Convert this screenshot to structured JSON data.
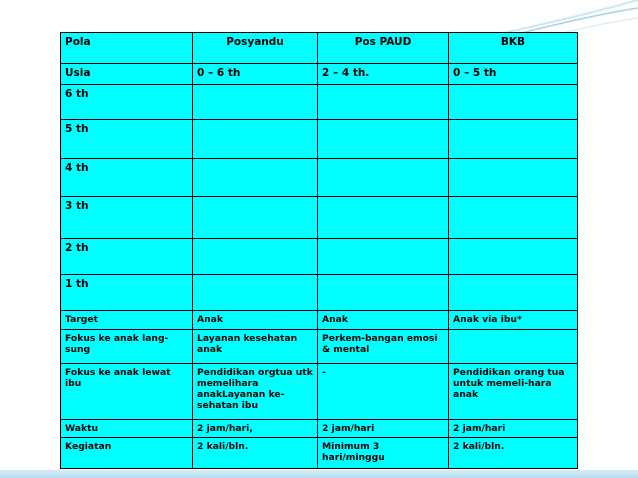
{
  "table": {
    "header": [
      "Pola",
      "Posyandu",
      "Pos PAUD",
      "BKB"
    ],
    "usia_row": [
      "Usia",
      "0 – 6 th",
      "2 – 4 th.",
      "0 – 5 th"
    ],
    "age_rows": [
      "6 th",
      "5 th",
      "4 th",
      "3 th",
      "2 th",
      "1 th"
    ],
    "info_rows": [
      [
        "Target",
        "Anak",
        "Anak",
        "Anak via ibu*"
      ],
      [
        "Fokus ke anak lang-sung",
        "Layanan kesehatan anak",
        "Perkem-bangan emosi & mental",
        ""
      ],
      [
        "Fokus ke anak lewat ibu",
        "Pendidikan orgtua utk memelihara anakLayanan ke-sehatan ibu",
        "-",
        "Pendidikan orang tua untuk memeli-hara anak"
      ],
      [
        "Waktu",
        "2 jam/hari,",
        "2 jam/hari",
        "2 jam/hari"
      ],
      [
        "Kegiatan",
        "2 kali/bln.",
        "Minimum 3 hari/minggu",
        "2 kali/bln."
      ]
    ]
  },
  "colors": {
    "cell_background": "#00ffff",
    "posyandu_fill": "#ffffc0",
    "pos_paud_fill": "#0099dd",
    "bkb_fill": "#ff40c8",
    "stripe_fill": "#5a3fd8"
  }
}
